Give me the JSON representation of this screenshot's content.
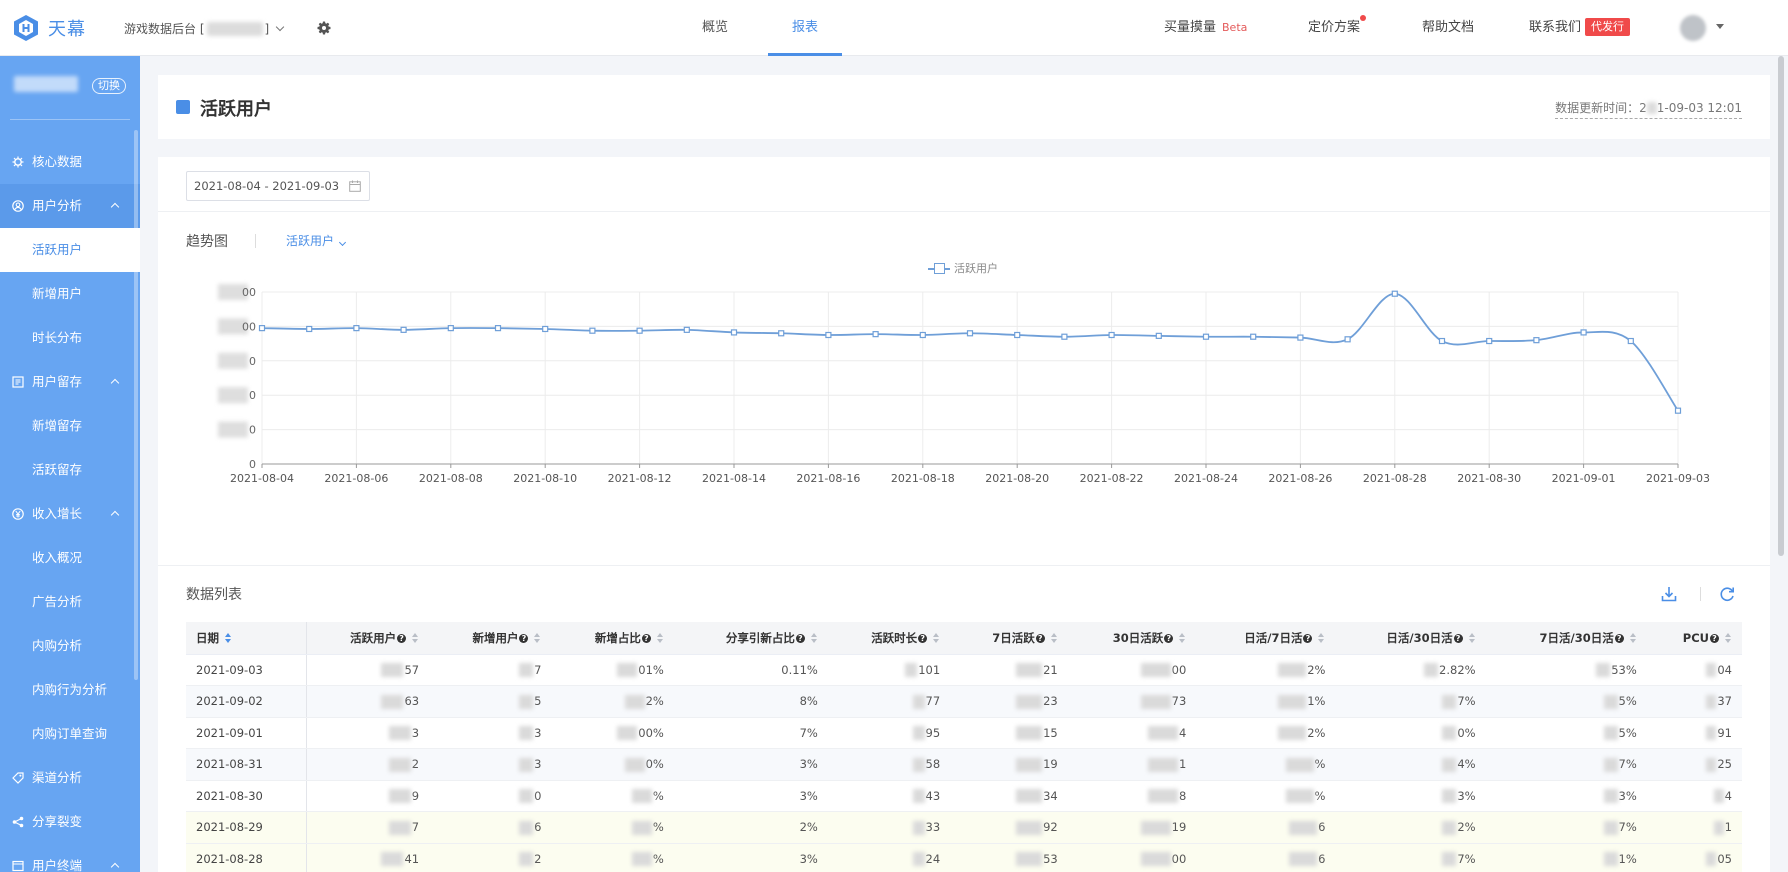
{
  "app": {
    "name": "天幕",
    "project_label": "游戏数据后台 [",
    "project_label_end": "]"
  },
  "top_nav": {
    "tabs": [
      {
        "label": "概览",
        "active": false
      },
      {
        "label": "报表",
        "active": true
      }
    ],
    "right": {
      "buy": "买量摸量",
      "buy_badge": "Beta",
      "pricing": "定价方案",
      "help": "帮助文档",
      "contact": "联系我们",
      "contact_badge": "代发行"
    }
  },
  "sidebar": {
    "switch_label": "切换",
    "items": [
      {
        "label": "核心数据",
        "type": "group",
        "icon": "gear-icon"
      },
      {
        "label": "用户分析",
        "type": "group",
        "icon": "user-circle-icon",
        "expanded": true
      },
      {
        "label": "活跃用户",
        "type": "sub",
        "active": true
      },
      {
        "label": "新增用户",
        "type": "sub"
      },
      {
        "label": "时长分布",
        "type": "sub"
      },
      {
        "label": "用户留存",
        "type": "group",
        "icon": "book-icon",
        "expanded": true
      },
      {
        "label": "新增留存",
        "type": "sub"
      },
      {
        "label": "活跃留存",
        "type": "sub"
      },
      {
        "label": "收入增长",
        "type": "group",
        "icon": "yen-icon",
        "expanded": true
      },
      {
        "label": "收入概况",
        "type": "sub"
      },
      {
        "label": "广告分析",
        "type": "sub"
      },
      {
        "label": "内购分析",
        "type": "sub"
      },
      {
        "label": "内购行为分析",
        "type": "sub"
      },
      {
        "label": "内购订单查询",
        "type": "sub"
      },
      {
        "label": "渠道分析",
        "type": "group",
        "icon": "tag-icon"
      },
      {
        "label": "分享裂变",
        "type": "group",
        "icon": "share-icon"
      },
      {
        "label": "用户终端",
        "type": "group",
        "icon": "device-icon",
        "expanded": true
      }
    ]
  },
  "page": {
    "title": "活跃用户",
    "update_time_label": "数据更新时间：2",
    "update_time_value": "1-09-03 12:01",
    "date_range": "2021-08-04 - 2021-09-03",
    "trend_label": "趋势图",
    "metric_selected": "活跃用户",
    "list_title": "数据列表"
  },
  "chart_data": {
    "type": "line",
    "series": [
      {
        "name": "活跃用户",
        "values": [
          0.79,
          0.785,
          0.79,
          0.78,
          0.79,
          0.79,
          0.785,
          0.775,
          0.775,
          0.78,
          0.765,
          0.76,
          0.75,
          0.755,
          0.75,
          0.76,
          0.75,
          0.74,
          0.75,
          0.745,
          0.74,
          0.74,
          0.735,
          0.725,
          0.99,
          0.715,
          0.715,
          0.72,
          0.765,
          0.715,
          0.31
        ]
      }
    ],
    "x": [
      "2021-08-04",
      "2021-08-05",
      "2021-08-06",
      "2021-08-07",
      "2021-08-08",
      "2021-08-09",
      "2021-08-10",
      "2021-08-11",
      "2021-08-12",
      "2021-08-13",
      "2021-08-14",
      "2021-08-15",
      "2021-08-16",
      "2021-08-17",
      "2021-08-18",
      "2021-08-19",
      "2021-08-20",
      "2021-08-21",
      "2021-08-22",
      "2021-08-23",
      "2021-08-24",
      "2021-08-25",
      "2021-08-26",
      "2021-08-27",
      "2021-08-28",
      "2021-08-29",
      "2021-08-30",
      "2021-08-31",
      "2021-09-01",
      "2021-09-02",
      "2021-09-03"
    ],
    "x_tick_labels": [
      "2021-08-04",
      "2021-08-06",
      "2021-08-08",
      "2021-08-10",
      "2021-08-12",
      "2021-08-14",
      "2021-08-16",
      "2021-08-18",
      "2021-08-20",
      "2021-08-22",
      "2021-08-24",
      "2021-08-26",
      "2021-08-28",
      "2021-08-30",
      "2021-09-01",
      "2021-09-03"
    ],
    "y_tick_labels": [
      "0",
      "",
      "",
      "",
      "",
      ""
    ],
    "y_tick_suffixes": [
      "",
      "0",
      "0",
      "0",
      "00",
      "00"
    ],
    "ylim": [
      0,
      1
    ],
    "grid": true,
    "legend": "top-center"
  },
  "table": {
    "headers": [
      {
        "label": "日期",
        "help": false,
        "sort_active": true
      },
      {
        "label": "活跃用户",
        "help": true
      },
      {
        "label": "新增用户",
        "help": true
      },
      {
        "label": "新增占比",
        "help": true
      },
      {
        "label": "分享引新占比",
        "help": true
      },
      {
        "label": "活跃时长",
        "help": true
      },
      {
        "label": "7日活跃",
        "help": true
      },
      {
        "label": "30日活跃",
        "help": true
      },
      {
        "label": "日活/7日活",
        "help": true
      },
      {
        "label": "日活/30日活",
        "help": true
      },
      {
        "label": "7日活/30日活",
        "help": true
      },
      {
        "label": "PCU",
        "help": true
      }
    ],
    "rows": [
      [
        "2021-09-03",
        "57",
        "7",
        "01%",
        "0.11%",
        "101",
        "21",
        "00",
        "2%",
        "2.82%",
        "53%",
        "04"
      ],
      [
        "2021-09-02",
        "63",
        "5",
        "2%",
        "8%",
        "77",
        "23",
        "73",
        "1%",
        "7%",
        "5%",
        "37"
      ],
      [
        "2021-09-01",
        "3",
        "3",
        "00%",
        "7%",
        "95",
        "15",
        "4",
        "2%",
        "0%",
        "5%",
        "91"
      ],
      [
        "2021-08-31",
        "2",
        "3",
        "0%",
        "3%",
        "58",
        "19",
        "1",
        "%",
        "4%",
        "7%",
        "25"
      ],
      [
        "2021-08-30",
        "9",
        "0",
        "%",
        "3%",
        "43",
        "34",
        "8",
        "%",
        "3%",
        "3%",
        "4"
      ],
      [
        "2021-08-29",
        "7",
        "6",
        "%",
        "2%",
        "33",
        "92",
        "19",
        "6",
        "2%",
        "7%",
        "1"
      ],
      [
        "2021-08-28",
        "41",
        "2",
        "%",
        "3%",
        "24",
        "53",
        "00",
        "6",
        "7%",
        "1%",
        "05"
      ]
    ]
  },
  "colors": {
    "accent": "#4a8ee6",
    "sidebar": "#67a5f2",
    "line": "#6f9fd8",
    "red": "#f04a4a"
  }
}
